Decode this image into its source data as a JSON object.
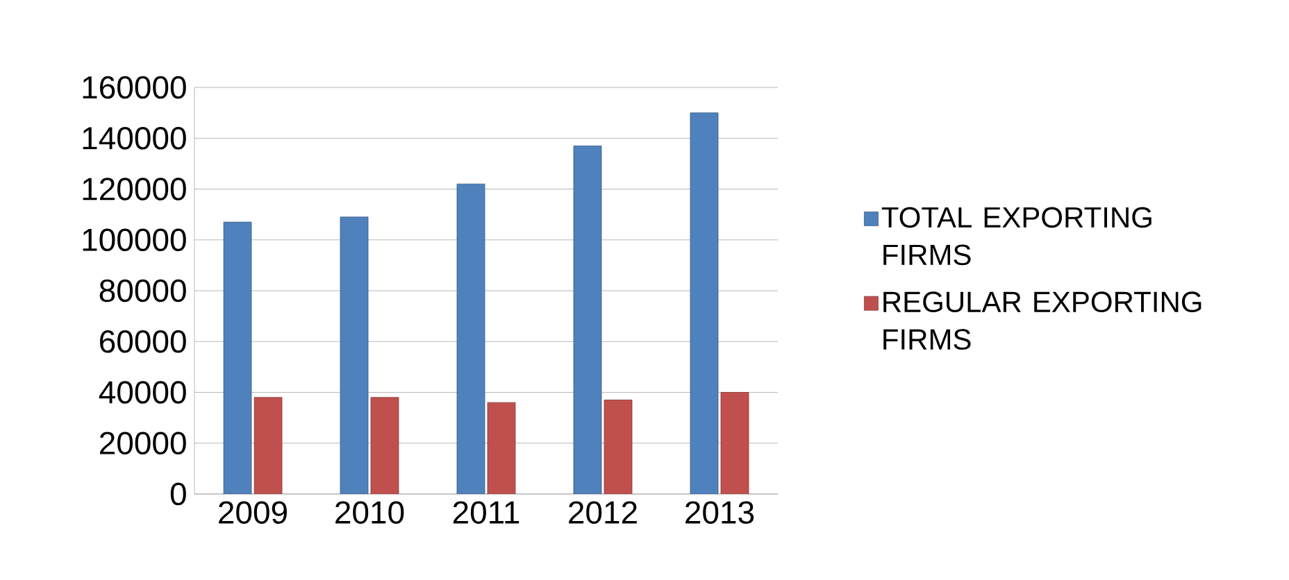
{
  "chart_data": {
    "type": "bar",
    "categories": [
      "2009",
      "2010",
      "2011",
      "2012",
      "2013"
    ],
    "series": [
      {
        "name": "TOTAL EXPORTING FIRMS",
        "color": "#4f81bd",
        "values": [
          107000,
          109000,
          122000,
          137000,
          150000
        ]
      },
      {
        "name": "REGULAR EXPORTING FIRMS",
        "color": "#c0504d",
        "values": [
          38000,
          38000,
          36000,
          37000,
          40000
        ]
      }
    ],
    "ylim": [
      0,
      160000
    ],
    "yticks": [
      0,
      20000,
      40000,
      60000,
      80000,
      100000,
      120000,
      140000,
      160000
    ],
    "grid": "y",
    "legend": "right"
  }
}
